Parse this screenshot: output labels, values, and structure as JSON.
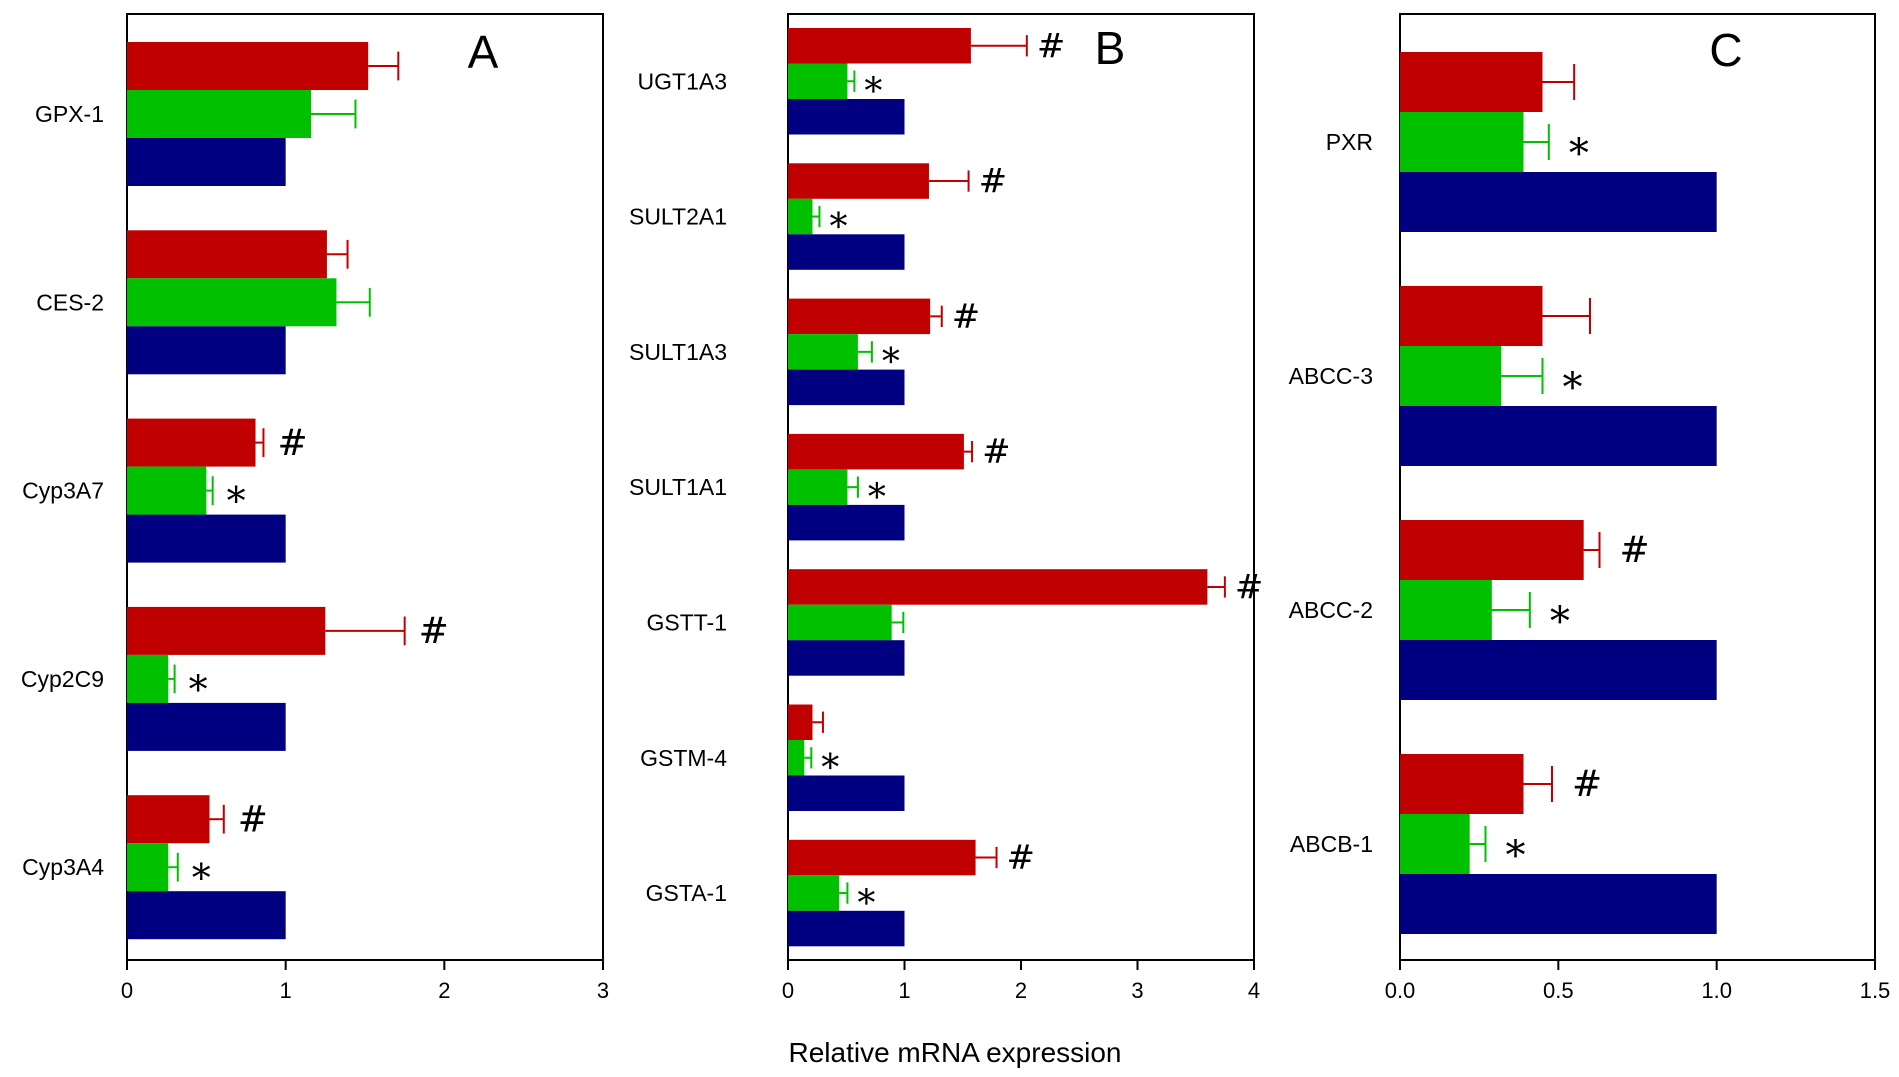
{
  "xlabel": "Relative mRNA expression",
  "colors": {
    "red": "#c00000",
    "green": "#00c000",
    "blue": "#000080",
    "axis": "#000000"
  },
  "chart_data": [
    {
      "type": "bar",
      "panel": "A",
      "categories": [
        "GPX-1",
        "CES-2",
        "Cyp3A7",
        "Cyp2C9",
        "Cyp3A4"
      ],
      "xlim": [
        0,
        3
      ],
      "xticks": [
        "0",
        "1",
        "2",
        "3"
      ],
      "series": [
        {
          "color": "red",
          "values": [
            1.52,
            1.26,
            0.81,
            1.25,
            0.52
          ],
          "errors": [
            0.19,
            0.13,
            0.05,
            0.5,
            0.09
          ],
          "markers": [
            "",
            "",
            "#",
            "#",
            "#"
          ]
        },
        {
          "color": "green",
          "values": [
            1.16,
            1.32,
            0.5,
            0.26,
            0.26
          ],
          "errors": [
            0.28,
            0.21,
            0.04,
            0.04,
            0.06
          ],
          "markers": [
            "",
            "",
            "*",
            "*",
            "*"
          ]
        },
        {
          "color": "blue",
          "values": [
            1.0,
            1.0,
            1.0,
            1.0,
            1.0
          ],
          "errors": [
            0,
            0,
            0,
            0,
            0
          ],
          "markers": [
            "",
            "",
            "",
            "",
            ""
          ]
        }
      ]
    },
    {
      "type": "bar",
      "panel": "B",
      "categories": [
        "UGT1A3",
        "SULT2A1",
        "SULT1A3",
        "SULT1A1",
        "GSTT-1",
        "GSTM-4",
        "GSTA-1"
      ],
      "xlim": [
        0,
        4
      ],
      "xticks": [
        "0",
        "1",
        "2",
        "3",
        "4"
      ],
      "series": [
        {
          "color": "red",
          "values": [
            1.57,
            1.21,
            1.22,
            1.51,
            3.6,
            0.21,
            1.61
          ],
          "errors": [
            0.48,
            0.34,
            0.1,
            0.07,
            0.15,
            0.09,
            0.18
          ],
          "markers": [
            "#",
            "#",
            "#",
            "#",
            "#",
            "",
            "#"
          ]
        },
        {
          "color": "green",
          "values": [
            0.51,
            0.21,
            0.6,
            0.51,
            0.89,
            0.14,
            0.44
          ],
          "errors": [
            0.06,
            0.06,
            0.12,
            0.09,
            0.1,
            0.06,
            0.07
          ],
          "markers": [
            "*",
            "*",
            "*",
            "*",
            "",
            "*",
            "*"
          ]
        },
        {
          "color": "blue",
          "values": [
            1.0,
            1.0,
            1.0,
            1.0,
            1.0,
            1.0,
            1.0
          ],
          "errors": [
            0,
            0,
            0,
            0,
            0,
            0,
            0
          ],
          "markers": [
            "",
            "",
            "",
            "",
            "",
            "",
            ""
          ]
        }
      ]
    },
    {
      "type": "bar",
      "panel": "C",
      "categories": [
        "PXR",
        "ABCC-3",
        "ABCC-2",
        "ABCB-1"
      ],
      "xlim": [
        0,
        1.5
      ],
      "xticks": [
        "0.0",
        "0.5",
        "1.0",
        "1.5"
      ],
      "series": [
        {
          "color": "red",
          "values": [
            0.45,
            0.45,
            0.58,
            0.39
          ],
          "errors": [
            0.1,
            0.15,
            0.05,
            0.09
          ],
          "markers": [
            "",
            "",
            "#",
            "#"
          ]
        },
        {
          "color": "green",
          "values": [
            0.39,
            0.32,
            0.29,
            0.22
          ],
          "errors": [
            0.08,
            0.13,
            0.12,
            0.05
          ],
          "markers": [
            "*",
            "*",
            "*",
            "*"
          ]
        },
        {
          "color": "blue",
          "values": [
            1.0,
            1.0,
            1.0,
            1.0
          ],
          "errors": [
            0,
            0,
            0,
            0
          ],
          "markers": [
            "",
            "",
            "",
            ""
          ]
        }
      ]
    }
  ]
}
